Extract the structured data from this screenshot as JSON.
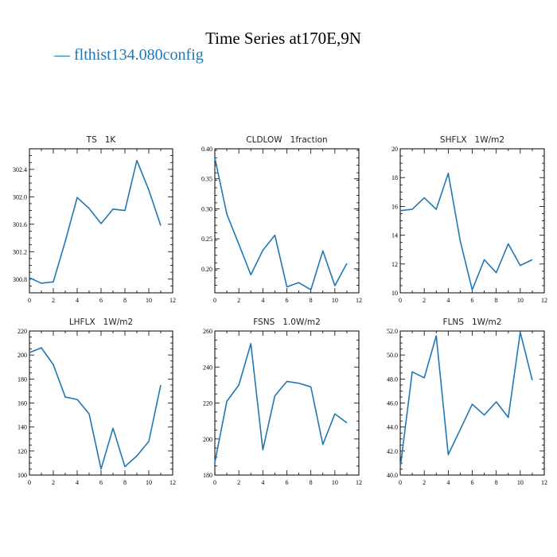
{
  "figure": {
    "title": "Time Series at170E,9N",
    "legend": "— flthist134.080config",
    "line_color": "#1f77b4"
  },
  "chart_data": [
    {
      "type": "line",
      "title": "TS   1K",
      "x": [
        0,
        1,
        2,
        3,
        4,
        5,
        6,
        7,
        8,
        9,
        10,
        11
      ],
      "series": [
        {
          "values": [
            300.82,
            300.74,
            300.76,
            301.35,
            301.99,
            301.83,
            301.61,
            301.82,
            301.8,
            302.53,
            302.1,
            301.58
          ]
        }
      ],
      "xlim": [
        0,
        12
      ],
      "ylim": [
        300.6,
        302.7
      ],
      "xticks": [
        0,
        2,
        4,
        6,
        8,
        10,
        12
      ],
      "xtick_labels": [
        "0",
        "2",
        "4",
        "6",
        "8",
        "10",
        "12"
      ],
      "yticks": [
        300.8,
        301.2,
        301.6,
        302.0,
        302.4
      ],
      "ytick_labels": [
        "300.8",
        "301.2",
        "301.6",
        "302.0",
        "302.4"
      ]
    },
    {
      "type": "line",
      "title": "CLDLOW   1fraction",
      "x": [
        0,
        1,
        2,
        3,
        4,
        5,
        6,
        7,
        8,
        9,
        10,
        11
      ],
      "series": [
        {
          "values": [
            0.385,
            0.291,
            0.241,
            0.19,
            0.231,
            0.256,
            0.17,
            0.177,
            0.165,
            0.23,
            0.172,
            0.209
          ]
        }
      ],
      "xlim": [
        0,
        12
      ],
      "ylim": [
        0.16,
        0.4
      ],
      "xticks": [
        0,
        2,
        4,
        6,
        8,
        10,
        12
      ],
      "xtick_labels": [
        "0",
        "2",
        "4",
        "6",
        "8",
        "10",
        "12"
      ],
      "yticks": [
        0.2,
        0.25,
        0.3,
        0.35,
        0.4
      ],
      "ytick_labels": [
        "0.20",
        "0.25",
        "0.30",
        "0.35",
        "0.40"
      ]
    },
    {
      "type": "line",
      "title": "SHFLX   1W/m2",
      "x": [
        0,
        1,
        2,
        3,
        4,
        5,
        6,
        7,
        8,
        9,
        10,
        11
      ],
      "series": [
        {
          "values": [
            15.7,
            15.8,
            16.6,
            15.8,
            18.3,
            13.6,
            10.2,
            12.3,
            11.4,
            13.4,
            11.9,
            12.3
          ]
        }
      ],
      "xlim": [
        0,
        12
      ],
      "ylim": [
        10,
        20
      ],
      "xticks": [
        0,
        2,
        4,
        6,
        8,
        10,
        12
      ],
      "xtick_labels": [
        "0",
        "2",
        "4",
        "6",
        "8",
        "10",
        "12"
      ],
      "yticks": [
        10,
        12,
        14,
        16,
        18,
        20
      ],
      "ytick_labels": [
        "10",
        "12",
        "14",
        "16",
        "18",
        "20"
      ]
    },
    {
      "type": "line",
      "title": "LHFLX   1W/m2",
      "x": [
        0,
        1,
        2,
        3,
        4,
        5,
        6,
        7,
        8,
        9,
        10,
        11
      ],
      "series": [
        {
          "values": [
            202,
            206,
            192,
            165,
            163,
            151,
            105,
            139,
            107,
            116,
            128,
            175
          ]
        }
      ],
      "xlim": [
        0,
        12
      ],
      "ylim": [
        100,
        220
      ],
      "xticks": [
        0,
        2,
        4,
        6,
        8,
        10,
        12
      ],
      "xtick_labels": [
        "0",
        "2",
        "4",
        "6",
        "8",
        "10",
        "12"
      ],
      "yticks": [
        100,
        120,
        140,
        160,
        180,
        200,
        220
      ],
      "ytick_labels": [
        "100",
        "120",
        "140",
        "160",
        "180",
        "200",
        "220"
      ]
    },
    {
      "type": "line",
      "title": "FSNS   1.0W/m2",
      "x": [
        0,
        1,
        2,
        3,
        4,
        5,
        6,
        7,
        8,
        9,
        10,
        11
      ],
      "series": [
        {
          "values": [
            187,
            221,
            230,
            253,
            194,
            224,
            232,
            231,
            229,
            197,
            214,
            209
          ]
        }
      ],
      "xlim": [
        0,
        12
      ],
      "ylim": [
        180,
        260
      ],
      "xticks": [
        0,
        2,
        4,
        6,
        8,
        10,
        12
      ],
      "xtick_labels": [
        "0",
        "2",
        "4",
        "6",
        "8",
        "10",
        "12"
      ],
      "yticks": [
        180,
        200,
        220,
        240,
        260
      ],
      "ytick_labels": [
        "180",
        "200",
        "220",
        "240",
        "260"
      ]
    },
    {
      "type": "line",
      "title": "FLNS   1W/m2",
      "x": [
        0,
        1,
        2,
        3,
        4,
        5,
        6,
        7,
        8,
        9,
        10,
        11
      ],
      "series": [
        {
          "values": [
            40.6,
            48.6,
            48.1,
            51.6,
            41.7,
            43.8,
            45.9,
            45.0,
            46.1,
            44.8,
            51.9,
            47.9
          ]
        }
      ],
      "xlim": [
        0,
        12
      ],
      "ylim": [
        40,
        52
      ],
      "xticks": [
        0,
        2,
        4,
        6,
        8,
        10,
        12
      ],
      "xtick_labels": [
        "0",
        "2",
        "4",
        "6",
        "8",
        "10",
        "12"
      ],
      "yticks": [
        40,
        42,
        44,
        46,
        48,
        50,
        52
      ],
      "ytick_labels": [
        "40.0",
        "42.0",
        "44.0",
        "46.0",
        "48.0",
        "50.0",
        "52.0"
      ]
    }
  ]
}
